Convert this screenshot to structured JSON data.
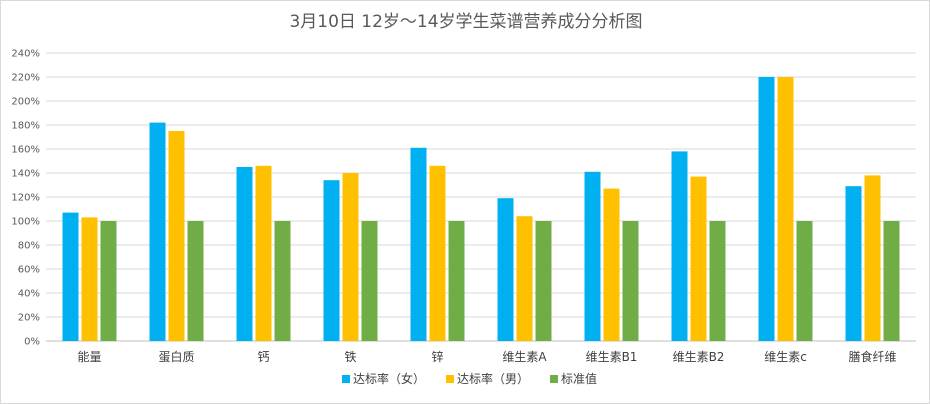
{
  "chart_data": {
    "type": "bar",
    "title": "3月10日 12岁～14岁学生菜谱营养成分分析图",
    "categories": [
      "能量",
      "蛋白质",
      "钙",
      "铁",
      "锌",
      "维生素A",
      "维生素B1",
      "维生素B2",
      "维生素c",
      "膳食纤维"
    ],
    "series": [
      {
        "name": "达标率（女）",
        "color": "#00b0f0",
        "values": [
          107,
          182,
          145,
          134,
          161,
          119,
          141,
          158,
          220,
          129
        ]
      },
      {
        "name": "达标率（男）",
        "color": "#ffc000",
        "values": [
          103,
          175,
          146,
          140,
          146,
          104,
          127,
          137,
          220,
          138
        ]
      },
      {
        "name": "标准值",
        "color": "#70ad47",
        "values": [
          100,
          100,
          100,
          100,
          100,
          100,
          100,
          100,
          100,
          100
        ]
      }
    ],
    "ylim": [
      0,
      240
    ],
    "ytick_step": 20,
    "ytick_labels": [
      "0%",
      "20%",
      "40%",
      "60%",
      "80%",
      "100%",
      "120%",
      "140%",
      "160%",
      "180%",
      "200%",
      "220%",
      "240%"
    ],
    "grid": true,
    "legend_position": "bottom",
    "xlabel": "",
    "ylabel": "",
    "gridline_color": "#d9d9d9"
  }
}
